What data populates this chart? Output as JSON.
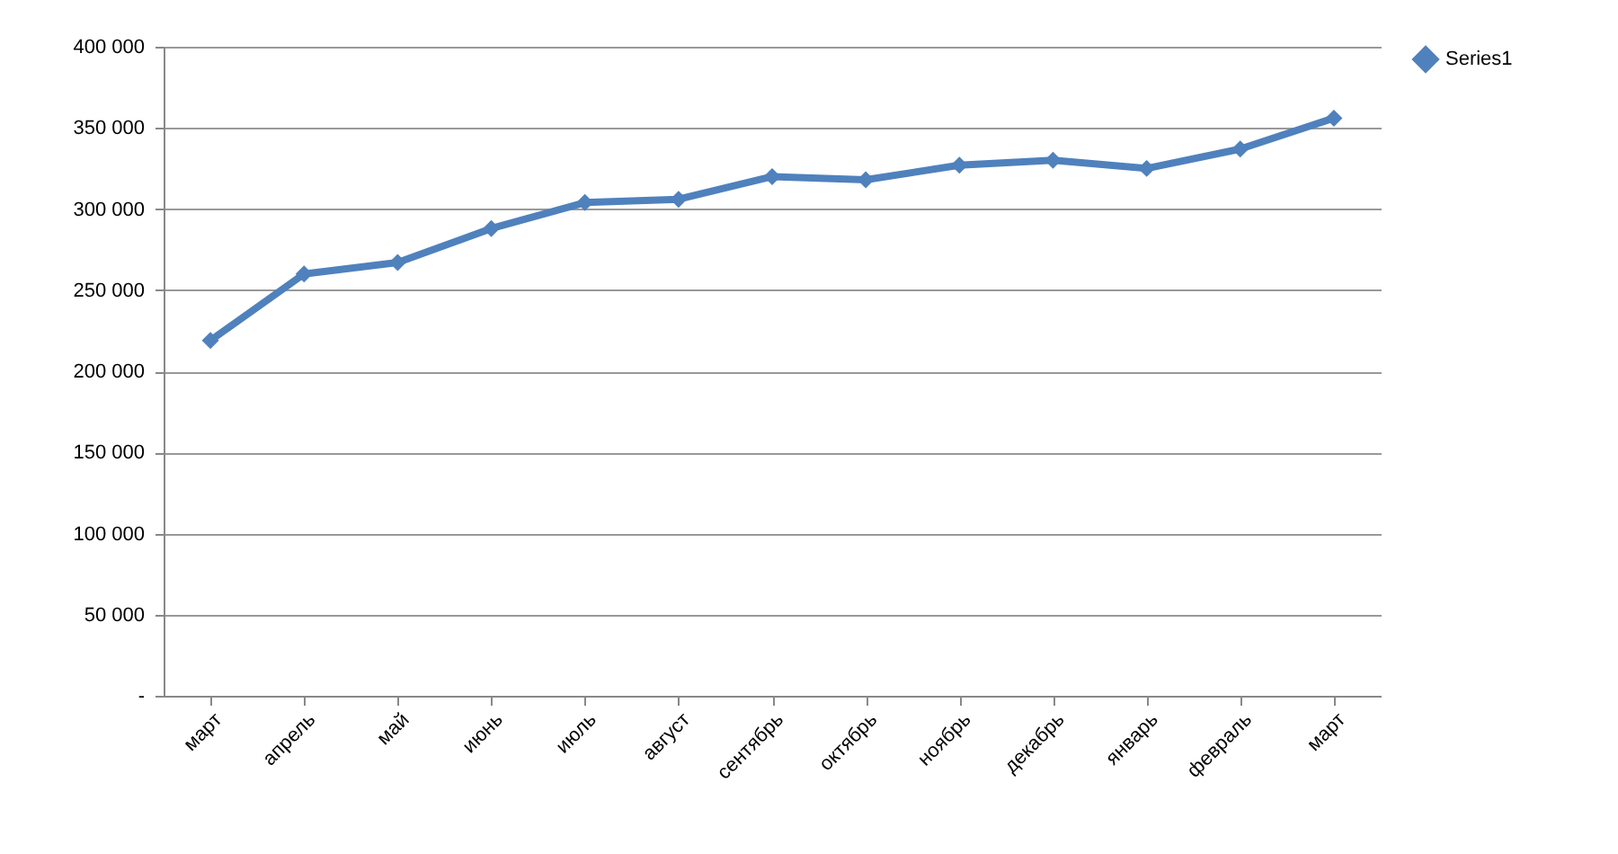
{
  "chart_data": {
    "type": "line",
    "categories": [
      "март",
      "апрель",
      "май",
      "июнь",
      "июль",
      "август",
      "сентябрь",
      "октябрь",
      "ноябрь",
      "декабрь",
      "январь",
      "февраль",
      "март"
    ],
    "series": [
      {
        "name": "Series1",
        "color": "#4f81bd",
        "values": [
          219000,
          260000,
          267000,
          288000,
          304000,
          306000,
          320000,
          318000,
          327000,
          330000,
          325000,
          337000,
          356000
        ]
      }
    ],
    "ylim": [
      0,
      400000
    ],
    "yticks": [
      {
        "value": 0,
        "label": "-"
      },
      {
        "value": 50000,
        "label": "50 000"
      },
      {
        "value": 100000,
        "label": "100 000"
      },
      {
        "value": 150000,
        "label": "150 000"
      },
      {
        "value": 200000,
        "label": "200 000"
      },
      {
        "value": 250000,
        "label": "250 000"
      },
      {
        "value": 300000,
        "label": "300 000"
      },
      {
        "value": 350000,
        "label": "350 000"
      },
      {
        "value": 400000,
        "label": "400 000"
      }
    ],
    "grid": "y",
    "legend": "right",
    "marker": "diamond",
    "line_style": "solid"
  }
}
